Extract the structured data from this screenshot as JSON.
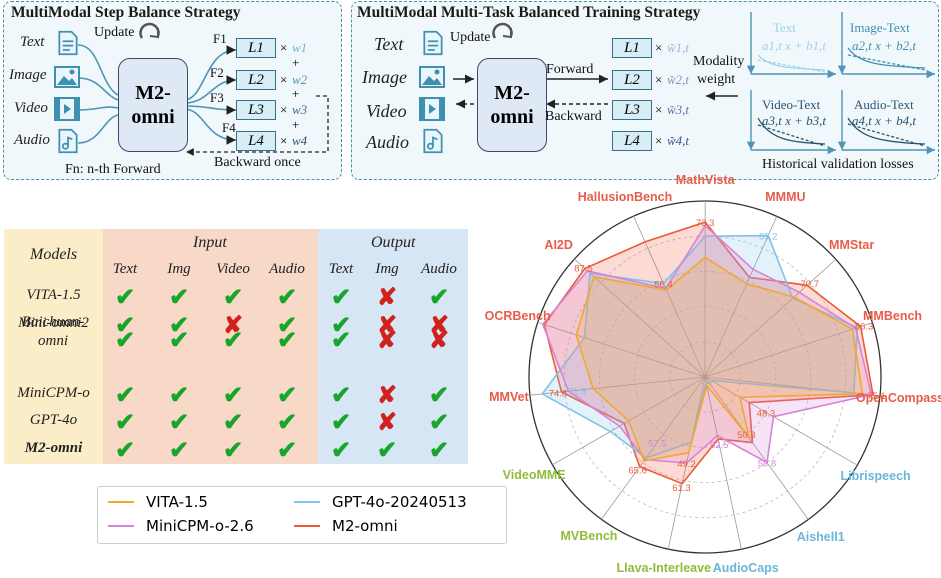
{
  "colors": {
    "vita": "#f0a830",
    "gpt4o": "#7fc4e6",
    "minicpm": "#d784d6",
    "m2": "#ec5a3a",
    "check": "#18a52c",
    "cross": "#d0211c",
    "vision": "#e85d4a",
    "audio": "#6ab6dd",
    "video": "#8fbc3a"
  },
  "left_panel": {
    "title": "MultiModal Step Balance Strategy",
    "modalities": [
      "Text",
      "Image",
      "Video",
      "Audio"
    ],
    "icons": [
      "document-icon",
      "image-icon",
      "video-icon",
      "audio-file-icon"
    ],
    "update": "Update",
    "model": "M2-omni",
    "forwards": [
      "F1",
      "F2",
      "F3",
      "F4"
    ],
    "losses": [
      "L1",
      "L2",
      "L3",
      "L4"
    ],
    "weights": [
      "w1",
      "w2",
      "w3",
      "w4"
    ],
    "plus": "+",
    "times": "×",
    "backward": "Backward once",
    "footer": "Fn: n-th Forward"
  },
  "right_panel": {
    "title": "MultiModal Multi-Task Balanced Training Strategy",
    "modalities": [
      "Text",
      "Image",
      "Video",
      "Audio"
    ],
    "update": "Update",
    "model": "M2-omni",
    "forward": "Forward",
    "backward": "Backward",
    "losses": [
      "L1",
      "L2",
      "L3",
      "L4"
    ],
    "weights": [
      "w̃1,t",
      "w̃2,t",
      "w̃3,t",
      "w̃4,t"
    ],
    "modality_weight": [
      "Modality",
      "weight"
    ],
    "mini_charts": [
      {
        "title": "Text",
        "formula": "a1,t x + b1,t"
      },
      {
        "title": "Image-Text",
        "formula": "a2,t x + b2,t"
      },
      {
        "title": "Video-Text",
        "formula": "a3,t x + b3,t"
      },
      {
        "title": "Audio-Text",
        "formula": "a4,t x + b4,t"
      }
    ],
    "footer": "Historical validation losses"
  },
  "table": {
    "models_header": "Models",
    "input_header": "Input",
    "output_header": "Output",
    "columns": [
      "Text",
      "Img",
      "Video",
      "Audio",
      "Text",
      "Img",
      "Audio"
    ],
    "rows": [
      {
        "name": "VITA-1.5",
        "cells": [
          1,
          1,
          1,
          1,
          1,
          0,
          1
        ]
      },
      {
        "name": "Mini-omni2",
        "cells": [
          1,
          1,
          0,
          1,
          1,
          0,
          0
        ]
      },
      {
        "name": "Baichuan-omni",
        "cells": [
          1,
          1,
          1,
          1,
          1,
          0,
          0
        ]
      },
      {
        "name": "MiniCPM-o",
        "cells": [
          1,
          1,
          1,
          1,
          1,
          0,
          1
        ]
      },
      {
        "name": "GPT-4o",
        "cells": [
          1,
          1,
          1,
          1,
          1,
          0,
          1
        ]
      },
      {
        "name": "M2-omni",
        "cells": [
          1,
          1,
          1,
          1,
          1,
          1,
          1
        ]
      }
    ]
  },
  "legend": [
    "VITA-1.5",
    "GPT-4o-20240513",
    "MiniCPM-o-2.6",
    "M2-omni"
  ],
  "chart_data": {
    "type": "radar",
    "axes": [
      {
        "name": "MMMU",
        "group": "vision"
      },
      {
        "name": "MMStar",
        "group": "vision"
      },
      {
        "name": "MMBench",
        "group": "vision"
      },
      {
        "name": "OpenCompass",
        "group": "vision"
      },
      {
        "name": "Librispeech",
        "group": "audio"
      },
      {
        "name": "Aishell1",
        "group": "audio"
      },
      {
        "name": "AudioCaps",
        "group": "audio"
      },
      {
        "name": "Llava-Interleave",
        "group": "video"
      },
      {
        "name": "MVBench",
        "group": "video"
      },
      {
        "name": "VideoMME",
        "group": "video"
      },
      {
        "name": "MMVet",
        "group": "vision"
      },
      {
        "name": "OCRBench",
        "group": "vision"
      },
      {
        "name": "AI2D",
        "group": "vision"
      },
      {
        "name": "HallusionBench",
        "group": "vision"
      },
      {
        "name": "MathVista",
        "group": "vision"
      }
    ],
    "series": [
      {
        "name": "M2-omni",
        "values": [
          0.62,
          0.78,
          0.93,
          0.96,
          0.29,
          0.46,
          0.36,
          0.62,
          0.63,
          0.53,
          0.82,
          0.96,
          0.92,
          0.84,
          0.88
        ]
      },
      {
        "name": "GPT-4o-20240513",
        "values": [
          0.88,
          0.67,
          0.91,
          0.85,
          0.04,
          0.05,
          0.03,
          0.38,
          0.57,
          0.62,
          0.93,
          0.72,
          0.88,
          0.58,
          0.8
        ]
      },
      {
        "name": "MiniCPM-o-2.6",
        "values": [
          0.67,
          0.72,
          0.9,
          0.95,
          0.45,
          0.6,
          0.34,
          0.5,
          0.58,
          0.56,
          0.78,
          0.97,
          0.9,
          0.55,
          0.86
        ]
      },
      {
        "name": "VITA-1.5",
        "values": [
          0.58,
          0.68,
          0.88,
          0.9,
          0.23,
          0.43,
          0.05,
          0.44,
          0.59,
          0.5,
          0.64,
          0.77,
          0.85,
          0.54,
          0.68
        ]
      }
    ],
    "data_labels": [
      {
        "text": "73.3",
        "axis": 14,
        "r": 0.88,
        "series": "M2-omni"
      },
      {
        "text": "69.2",
        "axis": 0,
        "r": 0.88,
        "series": "GPT-4o-20240513"
      },
      {
        "text": "70.7",
        "axis": 1,
        "r": 0.8,
        "series": "M2-omni"
      },
      {
        "text": "86.3",
        "axis": 2,
        "r": 0.95,
        "series": "M2-omni"
      },
      {
        "text": "75.1",
        "axis": 3,
        "r": 0.98,
        "series": "M2-omni"
      },
      {
        "text": "48.3",
        "axis": 4,
        "r": 0.4,
        "series": "M2-omni"
      },
      {
        "text": "59.8",
        "axis": 5,
        "r": 0.6,
        "series": "MiniCPM-o-2.6"
      },
      {
        "text": "50.3",
        "axis": 5,
        "r": 0.4,
        "series": "M2-omni"
      },
      {
        "text": "62.5",
        "axis": 6,
        "r": 0.39,
        "series": "MiniCPM-o-2.6"
      },
      {
        "text": "49.2",
        "axis": 7,
        "r": 0.5,
        "series": "M2-omni"
      },
      {
        "text": "61.3",
        "axis": 7,
        "r": 0.64,
        "series": "M2-omni"
      },
      {
        "text": "57.5",
        "axis": 8,
        "r": 0.46,
        "series": "MiniCPM-o-2.6"
      },
      {
        "text": "65.6",
        "axis": 8,
        "r": 0.65,
        "series": "M2-omni"
      },
      {
        "text": "71.9",
        "axis": 10,
        "r": 0.73,
        "series": "GPT-4o-20240513"
      },
      {
        "text": "74.8",
        "axis": 10,
        "r": 0.84,
        "series": "M2-omni"
      },
      {
        "text": "87.5",
        "axis": 12,
        "r": 0.93,
        "series": "M2-omni"
      },
      {
        "text": "56.4",
        "axis": 13,
        "r": 0.58,
        "series": "M2-omni"
      }
    ]
  }
}
